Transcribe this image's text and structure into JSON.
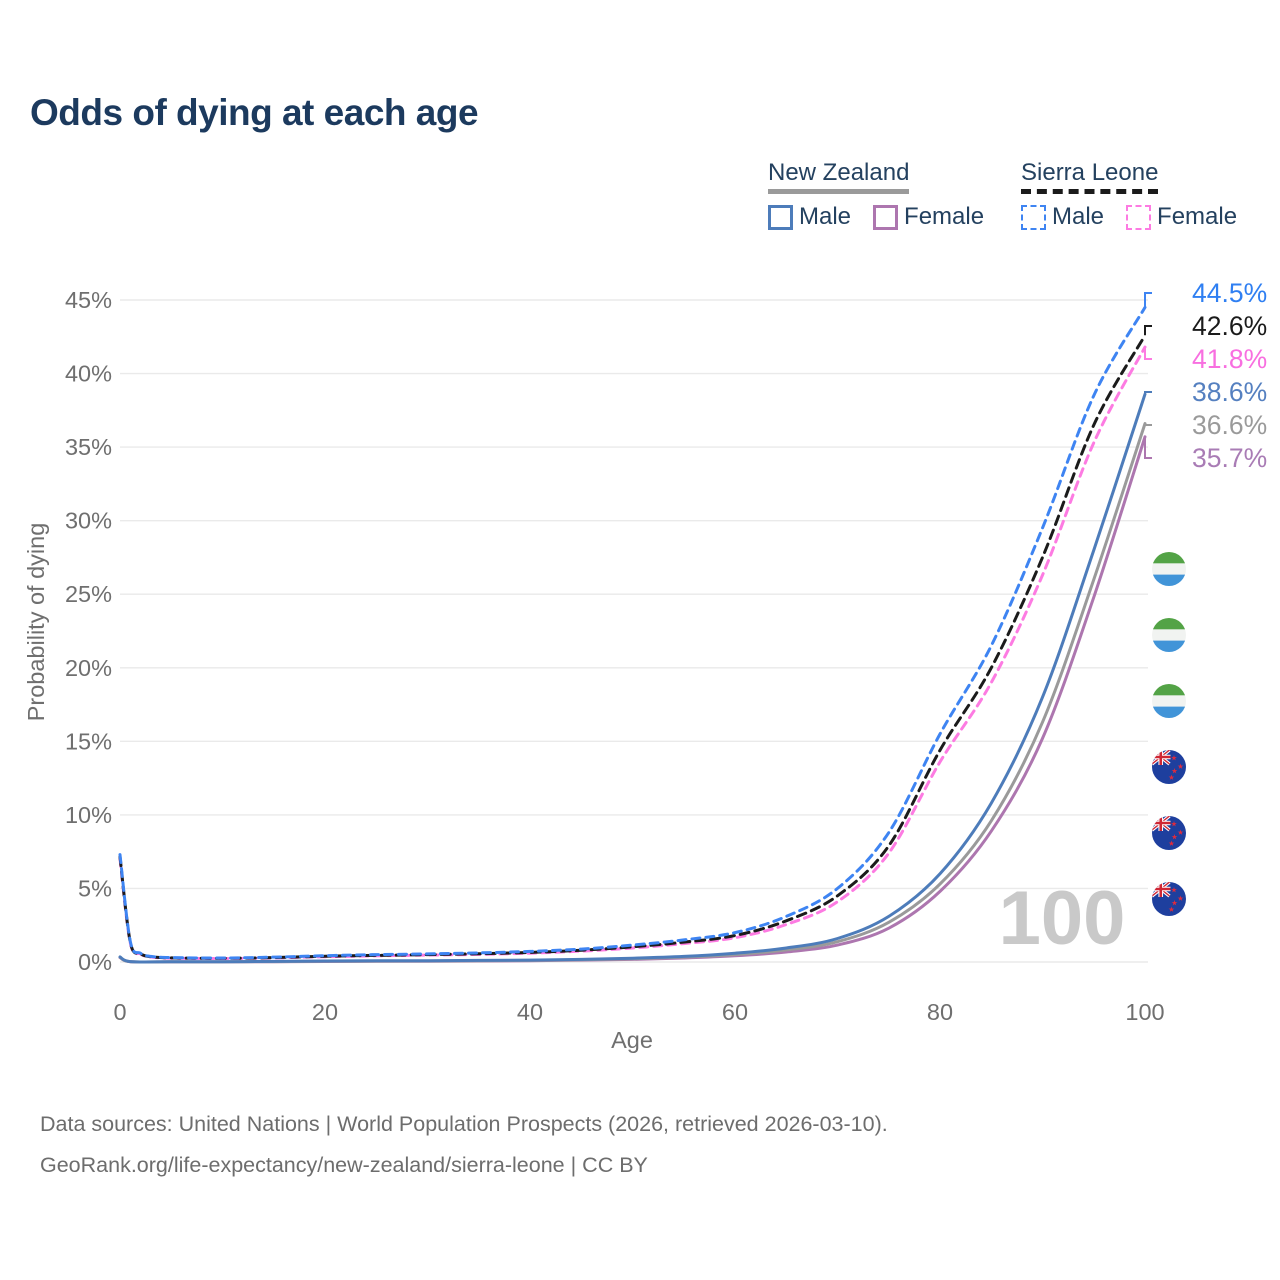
{
  "header": {
    "title": "Odds of dying at each age"
  },
  "legend": {
    "groups": [
      {
        "label": "New Zealand",
        "line_style": "solid",
        "underline_color": "#9a9a9a",
        "items": [
          {
            "label": "Male",
            "color": "#4d7cba",
            "dashed": false
          },
          {
            "label": "Female",
            "color": "#ad76af",
            "dashed": false
          }
        ]
      },
      {
        "label": "Sierra Leone",
        "line_style": "dashed",
        "underline_color": "#1b1b1b",
        "items": [
          {
            "label": "Male",
            "color": "#3e84f2",
            "dashed": true
          },
          {
            "label": "Female",
            "color": "#fd7be2",
            "dashed": true
          }
        ]
      }
    ]
  },
  "chart_data": {
    "type": "line",
    "title": "Odds of dying at each age",
    "xlabel": "Age",
    "ylabel": "Probability of dying",
    "xlim": [
      0,
      100
    ],
    "ylim": [
      0,
      45
    ],
    "xticks": [
      0,
      20,
      40,
      60,
      80,
      100
    ],
    "yticks": [
      0,
      5,
      10,
      15,
      20,
      25,
      30,
      35,
      40,
      45
    ],
    "ytick_suffix": "%",
    "grid": "horizontal",
    "legend_position": "top-right",
    "watermark": "100",
    "series": [
      {
        "id": "sl-male",
        "name": "Sierra Leone Male",
        "country": "Sierra Leone",
        "sex": "Male",
        "color": "#3e84f2",
        "label_color": "#2f7ff2",
        "dash": "8 6",
        "end_label": "44.5%",
        "end_value": 44.5,
        "flag": "sierra-leone-flag-icon",
        "points": [
          [
            0,
            7.3
          ],
          [
            1,
            1.4
          ],
          [
            2,
            0.6
          ],
          [
            3,
            0.38
          ],
          [
            5,
            0.3
          ],
          [
            10,
            0.27
          ],
          [
            15,
            0.33
          ],
          [
            20,
            0.43
          ],
          [
            25,
            0.5
          ],
          [
            30,
            0.55
          ],
          [
            35,
            0.62
          ],
          [
            40,
            0.72
          ],
          [
            45,
            0.88
          ],
          [
            50,
            1.15
          ],
          [
            55,
            1.5
          ],
          [
            60,
            2.0
          ],
          [
            65,
            3.1
          ],
          [
            70,
            5.0
          ],
          [
            75,
            8.8
          ],
          [
            80,
            15.5
          ],
          [
            85,
            21.5
          ],
          [
            90,
            29.5
          ],
          [
            95,
            38.5
          ],
          [
            100,
            44.5
          ]
        ]
      },
      {
        "id": "sl-both",
        "name": "Sierra Leone",
        "country": "Sierra Leone",
        "sex": "Both",
        "color": "#1b1b1b",
        "label_color": "#1b1b1b",
        "dash": "9 6",
        "end_label": "42.6%",
        "end_value": 42.6,
        "flag": "sierra-leone-flag-icon",
        "points": [
          [
            0,
            7.15
          ],
          [
            1,
            1.35
          ],
          [
            2,
            0.57
          ],
          [
            3,
            0.36
          ],
          [
            5,
            0.28
          ],
          [
            10,
            0.25
          ],
          [
            15,
            0.3
          ],
          [
            20,
            0.39
          ],
          [
            25,
            0.45
          ],
          [
            30,
            0.5
          ],
          [
            35,
            0.56
          ],
          [
            40,
            0.65
          ],
          [
            45,
            0.8
          ],
          [
            50,
            1.03
          ],
          [
            55,
            1.35
          ],
          [
            60,
            1.8
          ],
          [
            65,
            2.8
          ],
          [
            70,
            4.5
          ],
          [
            75,
            7.9
          ],
          [
            80,
            14.4
          ],
          [
            85,
            20.0
          ],
          [
            90,
            27.5
          ],
          [
            95,
            36.5
          ],
          [
            100,
            42.6
          ]
        ]
      },
      {
        "id": "sl-female",
        "name": "Sierra Leone Female",
        "country": "Sierra Leone",
        "sex": "Female",
        "color": "#fd7be2",
        "label_color": "#f86fe0",
        "dash": "8 6",
        "end_label": "41.8%",
        "end_value": 41.8,
        "flag": "sierra-leone-flag-icon",
        "points": [
          [
            0,
            7.0
          ],
          [
            1,
            1.3
          ],
          [
            2,
            0.55
          ],
          [
            3,
            0.34
          ],
          [
            5,
            0.26
          ],
          [
            10,
            0.24
          ],
          [
            15,
            0.28
          ],
          [
            20,
            0.36
          ],
          [
            25,
            0.42
          ],
          [
            30,
            0.47
          ],
          [
            35,
            0.52
          ],
          [
            40,
            0.6
          ],
          [
            45,
            0.74
          ],
          [
            50,
            0.95
          ],
          [
            55,
            1.25
          ],
          [
            60,
            1.65
          ],
          [
            65,
            2.55
          ],
          [
            70,
            4.1
          ],
          [
            75,
            7.4
          ],
          [
            80,
            13.6
          ],
          [
            85,
            19.0
          ],
          [
            90,
            26.3
          ],
          [
            95,
            35.3
          ],
          [
            100,
            41.8
          ]
        ]
      },
      {
        "id": "nz-male",
        "name": "New Zealand Male",
        "country": "New Zealand",
        "sex": "Male",
        "color": "#4d7cba",
        "label_color": "#5580c0",
        "dash": "",
        "end_label": "38.6%",
        "end_value": 38.6,
        "flag": "new-zealand-flag-icon",
        "points": [
          [
            0,
            0.35
          ],
          [
            1,
            0.03
          ],
          [
            5,
            0.015
          ],
          [
            10,
            0.015
          ],
          [
            15,
            0.04
          ],
          [
            20,
            0.07
          ],
          [
            25,
            0.08
          ],
          [
            30,
            0.09
          ],
          [
            35,
            0.11
          ],
          [
            40,
            0.13
          ],
          [
            45,
            0.18
          ],
          [
            50,
            0.26
          ],
          [
            55,
            0.38
          ],
          [
            60,
            0.6
          ],
          [
            65,
            0.95
          ],
          [
            70,
            1.6
          ],
          [
            75,
            3.1
          ],
          [
            80,
            6.0
          ],
          [
            85,
            10.8
          ],
          [
            90,
            18.0
          ],
          [
            95,
            28.0
          ],
          [
            100,
            38.6
          ]
        ]
      },
      {
        "id": "nz-both",
        "name": "New Zealand",
        "country": "New Zealand",
        "sex": "Both",
        "color": "#9a9a9a",
        "label_color": "#9a9a9a",
        "dash": "",
        "end_label": "36.6%",
        "end_value": 36.6,
        "flag": "new-zealand-flag-icon",
        "points": [
          [
            0,
            0.33
          ],
          [
            1,
            0.025
          ],
          [
            5,
            0.012
          ],
          [
            10,
            0.012
          ],
          [
            15,
            0.03
          ],
          [
            20,
            0.05
          ],
          [
            25,
            0.06
          ],
          [
            30,
            0.07
          ],
          [
            35,
            0.09
          ],
          [
            40,
            0.11
          ],
          [
            45,
            0.15
          ],
          [
            50,
            0.22
          ],
          [
            55,
            0.33
          ],
          [
            60,
            0.5
          ],
          [
            65,
            0.82
          ],
          [
            70,
            1.38
          ],
          [
            75,
            2.7
          ],
          [
            80,
            5.3
          ],
          [
            85,
            9.6
          ],
          [
            90,
            16.3
          ],
          [
            95,
            26.0
          ],
          [
            100,
            36.6
          ]
        ]
      },
      {
        "id": "nz-female",
        "name": "New Zealand Female",
        "country": "New Zealand",
        "sex": "Female",
        "color": "#ad76af",
        "label_color": "#a97cb5",
        "dash": "",
        "end_label": "35.7%",
        "end_value": 35.7,
        "flag": "new-zealand-flag-icon",
        "points": [
          [
            0,
            0.3
          ],
          [
            1,
            0.02
          ],
          [
            5,
            0.01
          ],
          [
            10,
            0.01
          ],
          [
            15,
            0.02
          ],
          [
            20,
            0.035
          ],
          [
            25,
            0.045
          ],
          [
            30,
            0.055
          ],
          [
            35,
            0.07
          ],
          [
            40,
            0.09
          ],
          [
            45,
            0.13
          ],
          [
            50,
            0.18
          ],
          [
            55,
            0.27
          ],
          [
            60,
            0.42
          ],
          [
            65,
            0.68
          ],
          [
            70,
            1.15
          ],
          [
            75,
            2.3
          ],
          [
            80,
            4.8
          ],
          [
            85,
            8.9
          ],
          [
            90,
            15.2
          ],
          [
            95,
            24.8
          ],
          [
            100,
            35.7
          ]
        ]
      }
    ],
    "colors": {
      "grid": "#eaeaea",
      "axis_text": "#6f6f6f",
      "watermark": "#c9c9c9",
      "title": "#1c3a5e",
      "legend_text": "#24415f",
      "sl_flag_green": "#53a346",
      "sl_flag_white": "#f1f3f1",
      "sl_flag_blue": "#4194d8",
      "nz_flag_navy": "#1e3f9e",
      "nz_flag_red": "#cf2634"
    }
  },
  "footer": {
    "line1": "Data sources: United Nations | World Population Prospects (2026, retrieved 2026-03-10).",
    "line2": "GeoRank.org/life-expectancy/new-zealand/sierra-leone | CC BY"
  }
}
